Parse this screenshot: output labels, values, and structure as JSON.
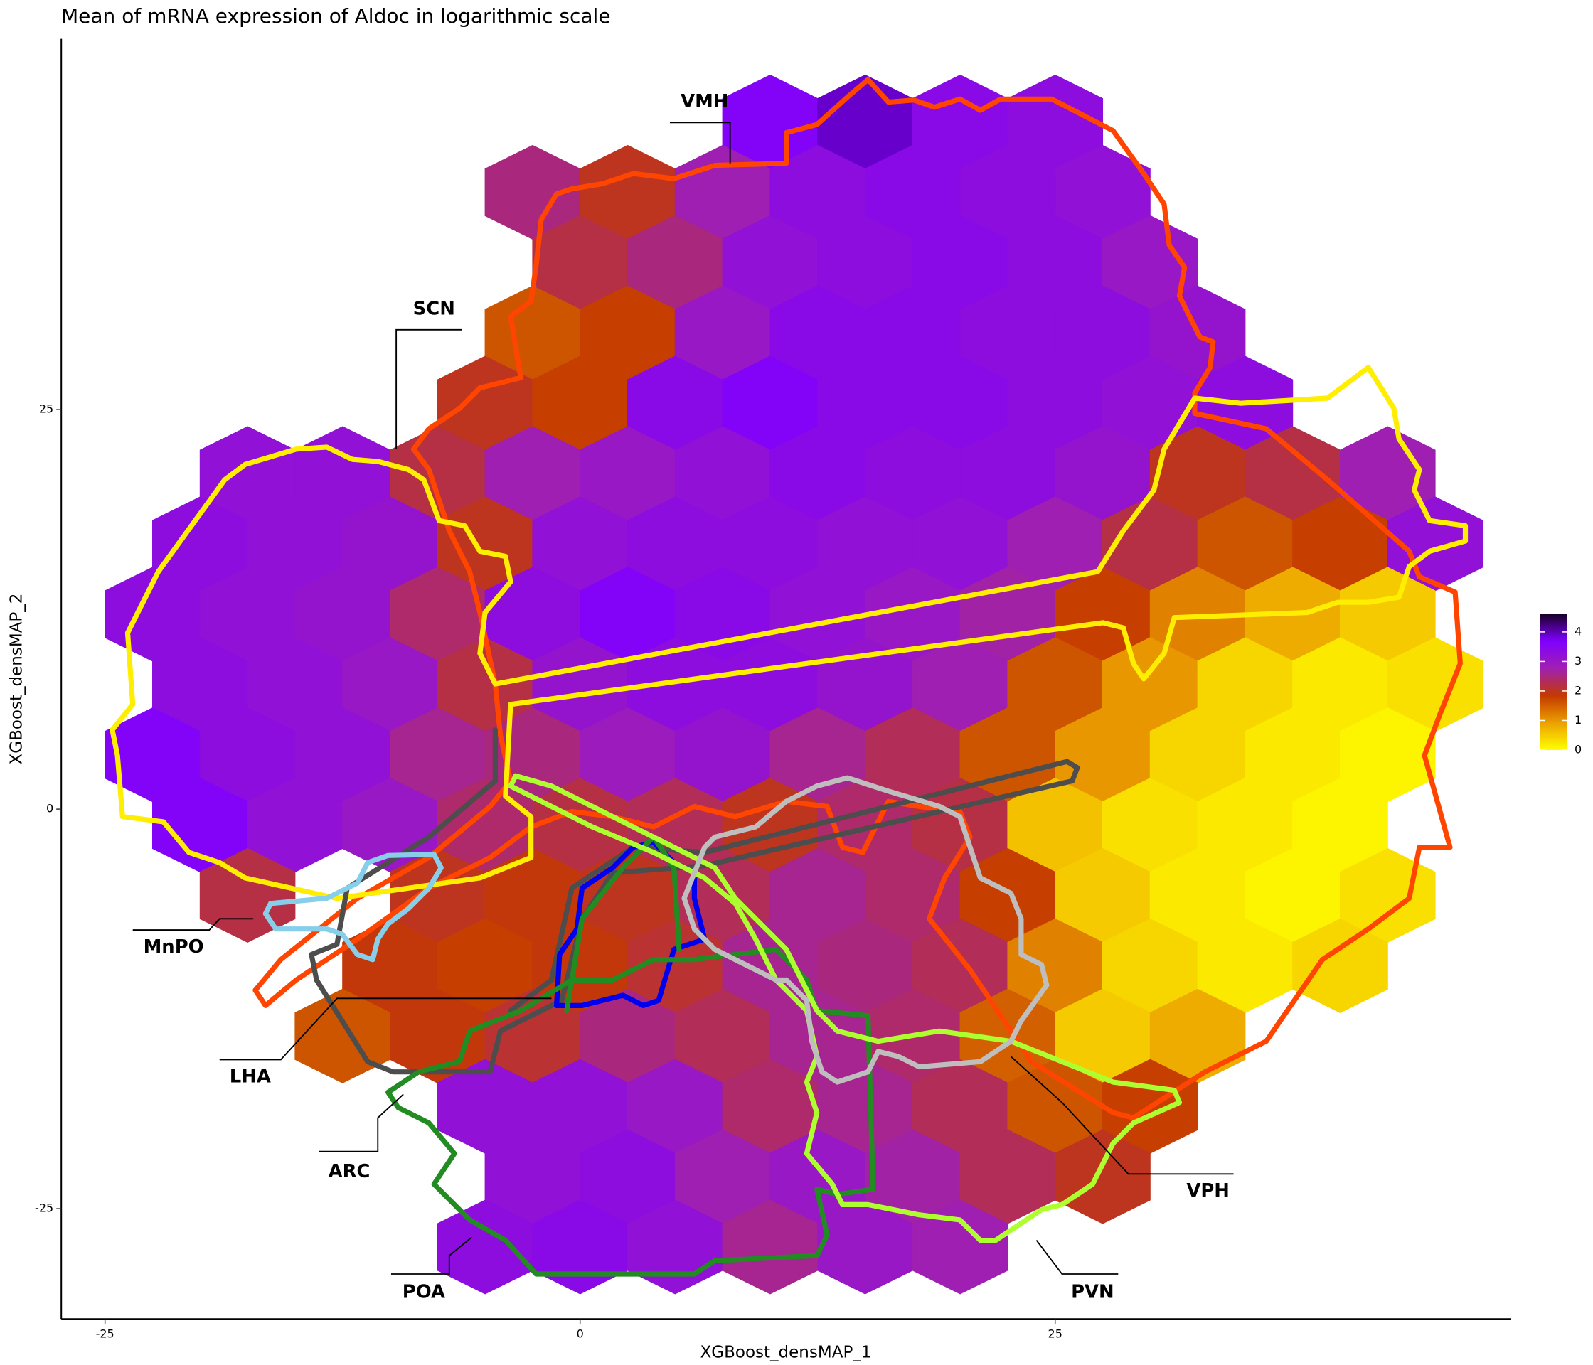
{
  "chart_data": {
    "type": "hexbin",
    "title": "Mean of mRNA expression of Aldoc in logarithmic scale",
    "x_label": "XGBoost_densMAP_1",
    "y_label": "XGBoost_densMAP_2",
    "xlim": [
      -27.3,
      49
    ],
    "ylim": [
      -31.9,
      48.2
    ],
    "xticks": [
      -25,
      0,
      25
    ],
    "yticks": [
      -25,
      0,
      25
    ],
    "annotations": [
      "VMH",
      "SCN",
      "MnPO",
      "LHA",
      "ARC",
      "POA",
      "VPH",
      "PVN"
    ],
    "colorbar": {
      "lim": [
        0,
        4.6
      ],
      "ticks": [
        0,
        1,
        2,
        3,
        4
      ],
      "colors": [
        "#ffff00",
        "#eca000",
        "#c43a00",
        "#a020b0",
        "#8000ff",
        "#1a0028"
      ]
    },
    "x": [
      10,
      15,
      20,
      25,
      -2.5,
      2.5,
      7.5,
      12.5,
      17.5,
      22.5,
      27.5,
      0,
      5,
      10,
      15,
      20,
      25,
      30,
      -2.5,
      2.5,
      7.5,
      12.5,
      17.5,
      22.5,
      27.5,
      32.5,
      -5,
      0,
      5,
      10,
      15,
      20,
      25,
      30,
      35,
      -17.5,
      -12.5,
      -7.5,
      -2.5,
      2.5,
      7.5,
      12.5,
      17.5,
      22.5,
      27.5,
      32.5,
      37.5,
      42.5,
      -20,
      -15,
      -10,
      -5,
      0,
      5,
      10,
      15,
      20,
      25,
      30,
      35,
      40,
      45,
      -22.5,
      -17.5,
      -12.5,
      -7.5,
      -2.5,
      2.5,
      7.5,
      12.5,
      17.5,
      22.5,
      27.5,
      32.5,
      37.5,
      42.5,
      -20,
      -15,
      -10,
      -5,
      0,
      5,
      10,
      15,
      20,
      25,
      30,
      35,
      40,
      45,
      -22.5,
      -17.5,
      -12.5,
      -7.5,
      -2.5,
      2.5,
      7.5,
      12.5,
      17.5,
      22.5,
      27.5,
      32.5,
      37.5,
      42.5,
      -20,
      -15,
      -10,
      -5,
      0,
      5,
      10,
      15,
      20,
      25,
      30,
      35,
      40,
      -17.5,
      -7.5,
      -2.5,
      2.5,
      7.5,
      12.5,
      17.5,
      22.5,
      27.5,
      32.5,
      37.5,
      42.5,
      -10,
      -5,
      0,
      5,
      10,
      15,
      20,
      25,
      30,
      35,
      40,
      -12.5,
      -7.5,
      -2.5,
      2.5,
      7.5,
      12.5,
      17.5,
      22.5,
      27.5,
      32.5,
      -5,
      0,
      5,
      10,
      15,
      20,
      25,
      30,
      -2.5,
      2.5,
      7.5,
      12.5,
      17.5,
      22.5,
      27.5,
      -5,
      0,
      5,
      10,
      15,
      20
    ],
    "y": [
      43,
      43,
      43,
      43,
      38.6,
      38.6,
      38.6,
      38.6,
      38.6,
      38.6,
      38.6,
      34.2,
      34.2,
      34.2,
      34.2,
      34.2,
      34.2,
      34.2,
      29.8,
      29.8,
      29.8,
      29.8,
      29.8,
      29.8,
      29.8,
      29.8,
      25.4,
      25.4,
      25.4,
      25.4,
      25.4,
      25.4,
      25.4,
      25.4,
      25.4,
      21,
      21,
      21,
      21,
      21,
      21,
      21,
      21,
      21,
      21,
      21,
      21,
      21,
      16.6,
      16.6,
      16.6,
      16.6,
      16.6,
      16.6,
      16.6,
      16.6,
      16.6,
      16.6,
      16.6,
      16.6,
      16.6,
      16.6,
      12.2,
      12.2,
      12.2,
      12.2,
      12.2,
      12.2,
      12.2,
      12.2,
      12.2,
      12.2,
      12.2,
      12.2,
      12.2,
      12.2,
      7.8,
      7.8,
      7.8,
      7.8,
      7.8,
      7.8,
      7.8,
      7.8,
      7.8,
      7.8,
      7.8,
      7.8,
      7.8,
      7.8,
      3.4,
      3.4,
      3.4,
      3.4,
      3.4,
      3.4,
      3.4,
      3.4,
      3.4,
      3.4,
      3.4,
      3.4,
      3.4,
      3.4,
      -1,
      -1,
      -1,
      -1,
      -1,
      -1,
      -1,
      -1,
      -1,
      -1,
      -1,
      -1,
      -1,
      -5.4,
      -5.4,
      -5.4,
      -5.4,
      -5.4,
      -5.4,
      -5.4,
      -5.4,
      -5.4,
      -5.4,
      -5.4,
      -5.4,
      -9.8,
      -9.8,
      -9.8,
      -9.8,
      -9.8,
      -9.8,
      -9.8,
      -9.8,
      -9.8,
      -9.8,
      -9.8,
      -14.2,
      -14.2,
      -14.2,
      -14.2,
      -14.2,
      -14.2,
      -14.2,
      -14.2,
      -14.2,
      -14.2,
      -18.6,
      -18.6,
      -18.6,
      -18.6,
      -18.6,
      -18.6,
      -18.6,
      -18.6,
      -23,
      -23,
      -23,
      -23,
      -23,
      -23,
      -23,
      -27.4,
      -27.4,
      -27.4,
      -27.4,
      -27.4,
      -27.4
    ],
    "values": [
      3.6,
      3.9,
      3.4,
      3.3,
      2.5,
      2.0,
      2.8,
      3.3,
      3.4,
      3.3,
      3.2,
      2.2,
      2.5,
      3.2,
      3.3,
      3.4,
      3.3,
      3.0,
      1.6,
      1.8,
      3.0,
      3.4,
      3.4,
      3.3,
      3.3,
      3.1,
      2.0,
      1.8,
      3.4,
      3.6,
      3.4,
      3.4,
      3.3,
      3.2,
      3.3,
      3.2,
      3.2,
      2.2,
      2.8,
      3.0,
      3.2,
      3.4,
      3.3,
      3.3,
      3.1,
      2.0,
      2.2,
      2.8,
      3.3,
      3.2,
      3.1,
      2.0,
      3.2,
      3.3,
      3.3,
      3.2,
      3.2,
      2.8,
      2.2,
      1.6,
      1.8,
      3.2,
      3.3,
      3.2,
      3.1,
      2.4,
      3.3,
      3.6,
      3.4,
      3.2,
      3.0,
      2.7,
      1.8,
      1.2,
      0.8,
      0.5,
      3.3,
      3.2,
      3.0,
      2.2,
      3.1,
      3.3,
      3.3,
      3.1,
      2.8,
      1.6,
      1.0,
      0.4,
      0.2,
      0.3,
      3.6,
      3.3,
      3.2,
      2.6,
      2.5,
      2.9,
      3.1,
      2.6,
      2.3,
      1.6,
      1.0,
      0.4,
      0.2,
      0.1,
      3.6,
      3.2,
      3.0,
      2.4,
      2.2,
      2.3,
      2.0,
      2.4,
      2.2,
      0.6,
      0.3,
      0.2,
      0.1,
      2.2,
      2.0,
      1.9,
      2.0,
      2.3,
      2.6,
      2.4,
      1.8,
      0.5,
      0.2,
      0.1,
      0.3,
      1.9,
      1.8,
      1.9,
      2.1,
      2.6,
      2.5,
      2.3,
      1.2,
      0.4,
      0.2,
      0.4,
      1.6,
      1.9,
      2.1,
      2.5,
      2.3,
      2.6,
      2.4,
      1.5,
      0.5,
      0.8,
      3.2,
      3.2,
      3.0,
      2.4,
      2.6,
      2.3,
      1.6,
      1.8,
      3.2,
      3.3,
      2.8,
      3.0,
      2.7,
      2.3,
      2.0,
      3.3,
      3.4,
      3.2,
      2.6,
      3.0,
      2.8
    ]
  }
}
